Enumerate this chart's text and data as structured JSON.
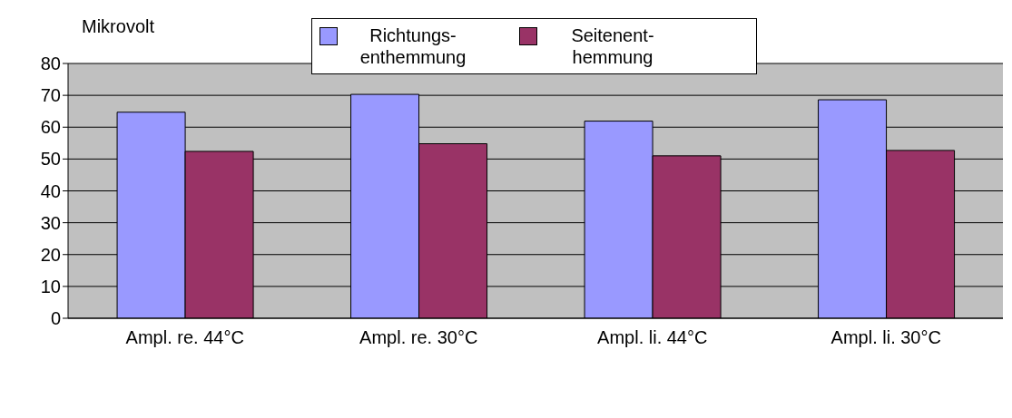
{
  "chart_data": {
    "type": "bar",
    "ylabel": "Mikrovolt",
    "categories": [
      "Ampl. re. 44°C",
      "Ampl. re. 30°C",
      "Ampl. li. 44°C",
      "Ampl. li. 30°C"
    ],
    "series": [
      {
        "name": "Richtungs-enthemmung",
        "color": "#9999ff",
        "values": [
          64.7,
          70.3,
          61.9,
          68.6
        ]
      },
      {
        "name": "Seitenent-hemmung",
        "color": "#993366",
        "values": [
          52.4,
          54.8,
          51.0,
          52.7
        ]
      }
    ],
    "ylim": [
      0,
      80
    ],
    "yticks": [
      0,
      10,
      20,
      30,
      40,
      50,
      60,
      70,
      80
    ],
    "grid": "y",
    "legend": "top"
  }
}
